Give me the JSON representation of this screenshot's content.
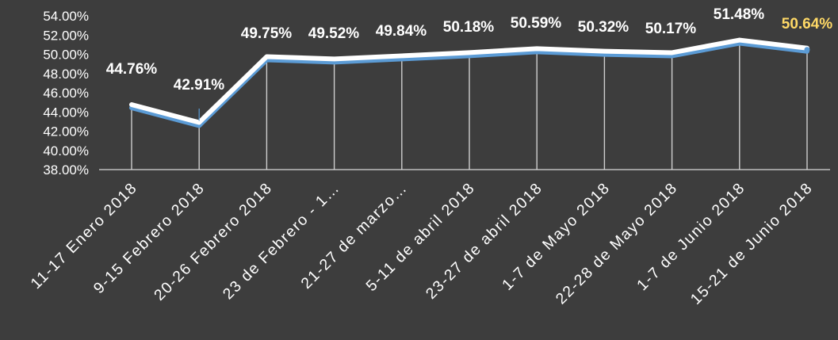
{
  "chart_data": {
    "type": "line",
    "categories": [
      "11-17 Enero 2018",
      "9-15 Febrero 2018",
      "20-26 Febrero 2018",
      "23 de Febrero - 1…",
      "21-27 de marzo…",
      "5-11 de abril 2018",
      "23-27 de abril 2018",
      "1-7 de Mayo 2018",
      "22-28 de Mayo 2018",
      "1-7 de Junio 2018",
      "15-21 de Junio 2018"
    ],
    "values": [
      44.76,
      42.91,
      49.75,
      49.52,
      49.84,
      50.18,
      50.59,
      50.32,
      50.17,
      51.48,
      50.64
    ],
    "data_labels": [
      "44.76%",
      "42.91%",
      "49.75%",
      "49.52%",
      "49.84%",
      "50.18%",
      "50.59%",
      "50.32%",
      "50.17%",
      "51.48%",
      "50.64%"
    ],
    "highlight_index": 10,
    "y_ticks": [
      "54.00%",
      "52.00%",
      "50.00%",
      "48.00%",
      "46.00%",
      "44.00%",
      "42.00%",
      "40.00%",
      "38.00%"
    ],
    "ylim": [
      38,
      54
    ],
    "title": "",
    "xlabel": "",
    "ylabel": "",
    "grid": false,
    "legend": "none",
    "colors": {
      "background": "#3d3d3d",
      "line_main": "#ffffff",
      "line_shadow": "#5b9bd5",
      "text": "#ffffff",
      "highlight_label": "#ffd966"
    }
  }
}
